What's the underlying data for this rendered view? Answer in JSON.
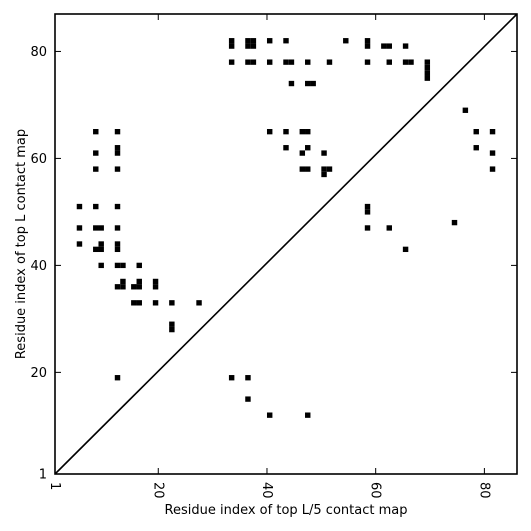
{
  "chart_data": {
    "type": "scatter",
    "title": "",
    "xlabel": "Residue index of top L/5 contact map",
    "ylabel": "Residue index of top L contact map",
    "xlim": [
      1,
      86
    ],
    "ylim": [
      1,
      87
    ],
    "x_ticks": [
      1,
      20,
      40,
      60,
      80
    ],
    "y_ticks": [
      1,
      20,
      40,
      60,
      80
    ],
    "grid": false,
    "diagonal_line": true,
    "marker_color": "#000000",
    "series": [
      {
        "name": "",
        "points": [
          [
            5.5,
            51
          ],
          [
            5.5,
            47
          ],
          [
            5.5,
            44
          ],
          [
            8.5,
            65
          ],
          [
            8.5,
            61
          ],
          [
            8.5,
            58
          ],
          [
            8.5,
            51
          ],
          [
            8.5,
            47
          ],
          [
            8.5,
            43
          ],
          [
            9.5,
            47
          ],
          [
            9.5,
            44
          ],
          [
            9.5,
            43
          ],
          [
            9.5,
            40
          ],
          [
            12.5,
            65
          ],
          [
            12.5,
            62
          ],
          [
            12.5,
            61
          ],
          [
            12.5,
            58
          ],
          [
            12.5,
            51
          ],
          [
            12.5,
            47
          ],
          [
            12.5,
            44
          ],
          [
            12.5,
            43
          ],
          [
            12.5,
            40
          ],
          [
            12.5,
            36
          ],
          [
            12.5,
            19
          ],
          [
            13.5,
            40
          ],
          [
            13.5,
            37
          ],
          [
            13.5,
            36
          ],
          [
            15.5,
            36
          ],
          [
            15.5,
            33
          ],
          [
            16.5,
            40
          ],
          [
            16.5,
            37
          ],
          [
            16.5,
            36
          ],
          [
            16.5,
            33
          ],
          [
            19.5,
            37
          ],
          [
            19.5,
            36
          ],
          [
            19.5,
            33
          ],
          [
            22.5,
            33
          ],
          [
            22.5,
            29
          ],
          [
            22.5,
            28
          ],
          [
            27.5,
            33
          ],
          [
            33.5,
            82
          ],
          [
            33.5,
            81
          ],
          [
            33.5,
            78
          ],
          [
            33.5,
            19
          ],
          [
            36.5,
            82
          ],
          [
            36.5,
            81
          ],
          [
            36.5,
            78
          ],
          [
            36.5,
            19
          ],
          [
            36.5,
            15
          ],
          [
            37.5,
            82
          ],
          [
            37.5,
            81
          ],
          [
            37.5,
            78
          ],
          [
            40.5,
            82
          ],
          [
            40.5,
            78
          ],
          [
            40.5,
            65
          ],
          [
            40.5,
            12
          ],
          [
            43.5,
            82
          ],
          [
            43.5,
            78
          ],
          [
            43.5,
            65
          ],
          [
            43.5,
            62
          ],
          [
            44.5,
            78
          ],
          [
            44.5,
            74
          ],
          [
            46.5,
            65
          ],
          [
            46.5,
            61
          ],
          [
            46.5,
            58
          ],
          [
            47.5,
            78
          ],
          [
            47.5,
            74
          ],
          [
            47.5,
            65
          ],
          [
            47.5,
            62
          ],
          [
            47.5,
            58
          ],
          [
            47.5,
            12
          ],
          [
            48.5,
            74
          ],
          [
            50.5,
            61
          ],
          [
            50.5,
            58
          ],
          [
            50.5,
            57
          ],
          [
            51.5,
            78
          ],
          [
            51.5,
            58
          ],
          [
            54.5,
            82
          ],
          [
            58.5,
            82
          ],
          [
            58.5,
            81
          ],
          [
            58.5,
            78
          ],
          [
            58.5,
            51
          ],
          [
            58.5,
            50
          ],
          [
            58.5,
            47
          ],
          [
            61.5,
            81
          ],
          [
            62.5,
            81
          ],
          [
            62.5,
            78
          ],
          [
            62.5,
            47
          ],
          [
            65.5,
            81
          ],
          [
            65.5,
            78
          ],
          [
            65.5,
            43
          ],
          [
            66.5,
            78
          ],
          [
            69.5,
            78
          ],
          [
            69.5,
            77
          ],
          [
            69.5,
            76
          ],
          [
            69.5,
            75
          ],
          [
            74.5,
            48
          ],
          [
            76.5,
            69
          ],
          [
            78.5,
            65
          ],
          [
            78.5,
            62
          ],
          [
            81.5,
            65
          ],
          [
            81.5,
            61
          ],
          [
            81.5,
            58
          ]
        ]
      }
    ]
  }
}
